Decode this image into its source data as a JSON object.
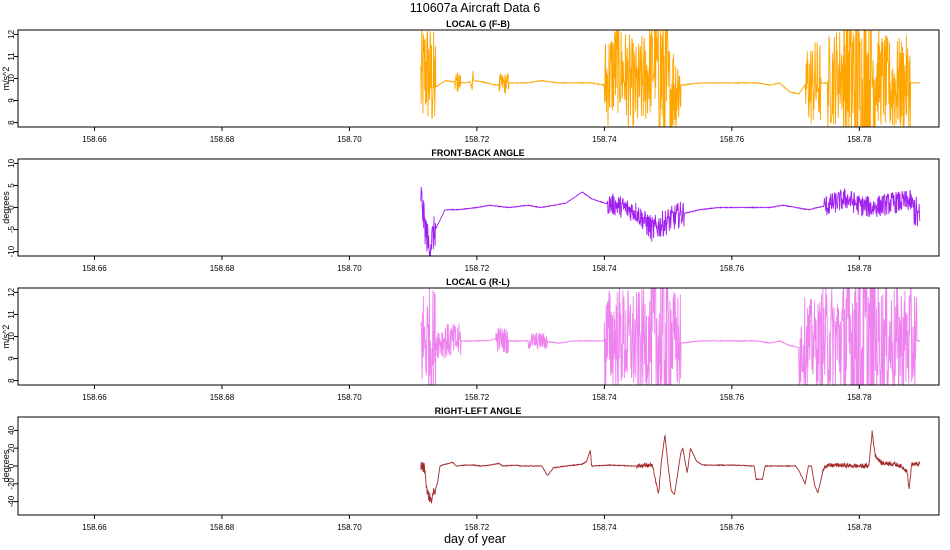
{
  "figure": {
    "title": "110607a   Aircraft Data 6",
    "xlabel": "day of year"
  },
  "chart_data": [
    {
      "type": "line",
      "title": "LOCAL G (F-B)",
      "ylabel": "m/s^2",
      "color": "#FFA500",
      "xlim": [
        158.648,
        158.7925
      ],
      "ylim": [
        7.8,
        12.2
      ],
      "yticks": [
        8,
        9,
        10,
        11,
        12
      ],
      "xticks": [
        158.66,
        158.68,
        158.7,
        158.72,
        158.74,
        158.76,
        158.78
      ],
      "xtick_labels": [
        "158.66",
        "158.68",
        "158.70",
        "158.72",
        "158.74",
        "158.76",
        "158.78"
      ],
      "flat_segment": {
        "x": [
          158.648,
          158.7112
        ],
        "y": 7.8
      },
      "series": [
        {
          "x": [
            158.7112,
            158.712,
            158.7135,
            158.715,
            158.718,
            158.72,
            158.7215,
            158.723,
            158.725,
            158.728,
            158.73,
            158.733,
            158.735,
            158.738,
            158.74,
            158.742,
            158.745,
            158.748,
            158.75,
            158.752,
            158.755,
            158.758,
            158.76,
            158.762,
            158.764,
            158.766,
            158.7675,
            158.769,
            158.7705,
            158.7715,
            158.773,
            158.775,
            158.778,
            158.78,
            158.782,
            158.785,
            158.788,
            158.7895
          ],
          "y": [
            9.8,
            10.4,
            9.6,
            9.9,
            9.8,
            9.9,
            9.8,
            9.7,
            9.8,
            9.8,
            9.9,
            9.8,
            9.8,
            9.8,
            9.7,
            10.6,
            9.4,
            10.8,
            9.5,
            9.7,
            9.8,
            9.8,
            9.8,
            9.8,
            9.8,
            9.7,
            9.8,
            9.4,
            9.3,
            9.7,
            9.8,
            9.8,
            10.5,
            9.4,
            10.3,
            9.6,
            9.8,
            9.8
          ]
        }
      ],
      "noise": [
        [
          158.7112,
          158.7135,
          2.5
        ],
        [
          158.7165,
          158.7175,
          0.5
        ],
        [
          158.719,
          158.7195,
          0.5
        ],
        [
          158.7235,
          158.725,
          0.5
        ],
        [
          158.74,
          158.752,
          2.2
        ],
        [
          158.7485,
          158.75,
          4.0
        ],
        [
          158.7715,
          158.774,
          2.0
        ],
        [
          158.775,
          158.788,
          2.2
        ],
        [
          158.7775,
          158.7825,
          4.0
        ]
      ]
    },
    {
      "type": "line",
      "title": "FRONT-BACK ANGLE",
      "ylabel": "degrees",
      "color": "#A020F0",
      "xlim": [
        158.648,
        158.7925
      ],
      "ylim": [
        -11,
        11
      ],
      "yticks": [
        -10,
        -5,
        0,
        5,
        10
      ],
      "xticks": [
        158.66,
        158.68,
        158.7,
        158.72,
        158.74,
        158.76,
        158.78
      ],
      "xtick_labels": [
        "158.66",
        "158.68",
        "158.70",
        "158.72",
        "158.74",
        "158.76",
        "158.78"
      ],
      "flat_segment": {
        "x": [
          158.648,
          158.7112
        ],
        "y": -11
      },
      "series": [
        {
          "x": [
            158.7112,
            158.7118,
            158.7125,
            158.7135,
            158.715,
            158.717,
            158.72,
            158.722,
            158.725,
            158.728,
            158.73,
            158.732,
            158.734,
            158.7365,
            158.738,
            158.74,
            158.742,
            158.745,
            158.7475,
            158.75,
            158.752,
            158.755,
            158.758,
            158.76,
            158.763,
            158.766,
            158.768,
            158.77,
            158.772,
            158.775,
            158.778,
            158.78,
            158.782,
            158.785,
            158.788,
            158.7895
          ],
          "y": [
            3,
            -4,
            -9,
            -5,
            -0.5,
            -0.5,
            0,
            0.5,
            0,
            0.5,
            0,
            0.5,
            1,
            3.5,
            2,
            1,
            0.5,
            -1,
            -5,
            -3,
            -1.5,
            -0.5,
            0,
            0,
            0,
            0,
            0.5,
            0,
            -0.5,
            0.5,
            2,
            0.5,
            0,
            1,
            1.5,
            -3
          ]
        }
      ],
      "noise": [
        [
          158.7112,
          158.7135,
          4.0
        ],
        [
          158.7405,
          158.7465,
          2.5
        ],
        [
          158.7465,
          158.7525,
          3.0
        ],
        [
          158.7745,
          158.789,
          2.5
        ],
        [
          158.7885,
          158.7895,
          4.0
        ]
      ]
    },
    {
      "type": "line",
      "title": "LOCAL G (R-L)",
      "ylabel": "m/s^2",
      "color": "#EE82EE",
      "xlim": [
        158.648,
        158.7925
      ],
      "ylim": [
        7.8,
        12.2
      ],
      "yticks": [
        8,
        9,
        10,
        11,
        12
      ],
      "xticks": [
        158.66,
        158.68,
        158.7,
        158.72,
        158.74,
        158.76,
        158.78
      ],
      "xtick_labels": [
        "158.66",
        "158.68",
        "158.70",
        "158.72",
        "158.74",
        "158.76",
        "158.78"
      ],
      "flat_segment": {
        "x": [
          158.648,
          158.7112
        ],
        "y": 7.8
      },
      "series": [
        {
          "x": [
            158.7112,
            158.712,
            158.7135,
            158.715,
            158.718,
            158.72,
            158.7215,
            158.723,
            158.725,
            158.728,
            158.73,
            158.733,
            158.735,
            158.738,
            158.74,
            158.742,
            158.745,
            158.748,
            158.75,
            158.752,
            158.755,
            158.758,
            158.76,
            158.762,
            158.764,
            158.766,
            158.7675,
            158.769,
            158.7705,
            158.7715,
            158.773,
            158.775,
            158.778,
            158.78,
            158.782,
            158.785,
            158.788,
            158.7895
          ],
          "y": [
            9.8,
            9.9,
            9.8,
            9.8,
            9.8,
            9.8,
            9.8,
            9.9,
            9.8,
            9.8,
            9.8,
            9.7,
            9.8,
            9.8,
            9.8,
            10.0,
            9.7,
            9.9,
            9.8,
            9.7,
            9.8,
            9.8,
            9.8,
            9.8,
            9.8,
            9.7,
            9.8,
            9.6,
            9.5,
            9.8,
            9.7,
            9.8,
            9.9,
            9.8,
            9.8,
            9.8,
            9.8,
            9.8
          ]
        }
      ],
      "noise": [
        [
          158.7112,
          158.7135,
          2.5
        ],
        [
          158.7135,
          158.7175,
          0.8
        ],
        [
          158.723,
          158.725,
          0.6
        ],
        [
          158.728,
          158.731,
          0.4
        ],
        [
          158.74,
          158.752,
          2.4
        ],
        [
          158.7475,
          158.7505,
          4.5
        ],
        [
          158.7705,
          158.774,
          2.0
        ],
        [
          158.774,
          158.789,
          2.6
        ],
        [
          158.7775,
          158.7825,
          4.5
        ]
      ]
    },
    {
      "type": "line",
      "title": "RIGHT-LEFT ANGLE",
      "ylabel": "degrees",
      "color": "#A52A2A",
      "xlim": [
        158.648,
        158.7925
      ],
      "ylim": [
        -55,
        55
      ],
      "yticks": [
        -40,
        -20,
        0,
        20,
        40
      ],
      "xticks": [
        158.66,
        158.68,
        158.7,
        158.72,
        158.74,
        158.76,
        158.78
      ],
      "xtick_labels": [
        "158.66",
        "158.68",
        "158.70",
        "158.72",
        "158.74",
        "158.76",
        "158.78"
      ],
      "flat_segment": {
        "x": [
          158.648,
          158.7112
        ],
        "y": -55
      },
      "series": [
        {
          "x": [
            158.7112,
            158.7118,
            158.7122,
            158.7128,
            158.7138,
            158.7142,
            158.715,
            158.7162,
            158.7168,
            158.718,
            158.7195,
            158.7205,
            158.722,
            158.7235,
            158.724,
            158.7262,
            158.7268,
            158.728,
            158.7298,
            158.7302,
            158.731,
            158.7312,
            158.732,
            158.734,
            158.7365,
            158.7372,
            158.7378,
            158.738,
            158.741,
            158.7445,
            158.7475,
            158.7485,
            158.749,
            158.7495,
            158.75,
            158.7505,
            158.751,
            158.752,
            158.7523,
            158.753,
            158.7535,
            158.7545,
            158.7555,
            158.758,
            158.7605,
            158.7635,
            158.7638,
            158.7648,
            158.7652,
            158.766,
            158.768,
            158.77,
            158.7705,
            158.7715,
            158.772,
            158.7725,
            158.773,
            158.7735,
            158.7745,
            158.7765,
            158.7795,
            158.7815,
            158.782,
            158.7825,
            158.7835,
            158.7848,
            158.7862,
            158.7875,
            158.7878,
            158.7882,
            158.7895
          ],
          "y": [
            0,
            -2,
            -30,
            -38,
            -20,
            0,
            2,
            4,
            0,
            1,
            1,
            0,
            1,
            3,
            0,
            1,
            0,
            0,
            0,
            0,
            -10,
            -10,
            -2,
            0,
            2,
            5,
            18,
            0,
            1,
            0,
            1,
            -32,
            8,
            35,
            0,
            -28,
            -32,
            15,
            20,
            -8,
            20,
            5,
            1,
            1,
            1,
            0,
            -15,
            -15,
            0,
            0,
            0,
            0,
            -5,
            -20,
            0,
            0,
            -22,
            -30,
            0,
            1,
            0,
            0,
            38,
            12,
            3,
            3,
            1,
            -5,
            -27,
            2,
            2
          ]
        }
      ],
      "noise": [
        [
          158.7112,
          158.7135,
          6
        ],
        [
          158.745,
          158.749,
          2.5
        ],
        [
          158.774,
          158.7895,
          2.5
        ]
      ]
    }
  ]
}
